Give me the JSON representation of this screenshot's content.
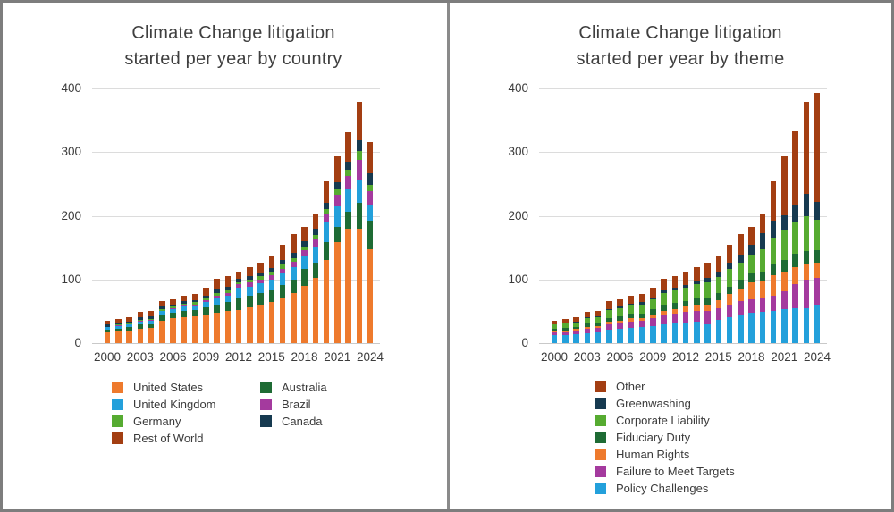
{
  "window": {
    "kind": "static-report-image",
    "panel_count": 2
  },
  "colors": {
    "united_states": "#EE7A2D",
    "united_kingdom": "#23A0DB",
    "germany": "#56AB31",
    "rest_of_world": "#A33E12",
    "australia": "#1E6B34",
    "brazil": "#A43A9E",
    "canada": "#163A50",
    "other": "#A33E12",
    "greenwashing": "#163A50",
    "corporate_liability": "#56AB31",
    "fiduciary_duty": "#1E6B34",
    "human_rights": "#EE7A2D",
    "failure_to_meet_targets": "#A43A9E",
    "policy_challenges": "#23A0DB",
    "title_text": "#3f3f3f",
    "tick_text": "#3b3b3b",
    "gridline": "#dcdcdc"
  },
  "chart_data": [
    {
      "type": "bar",
      "stacked": true,
      "title": "Climate Change litigation started per year by country",
      "title_line1": "Climate Change litigation",
      "title_line2": "started per year by country",
      "xlabel": "",
      "ylabel": "",
      "ylim": [
        0,
        400
      ],
      "yticks": [
        0,
        100,
        200,
        300,
        400
      ],
      "grid": true,
      "categories": [
        "2000",
        "2001",
        "2002",
        "2003",
        "2004",
        "2005",
        "2006",
        "2007",
        "2008",
        "2009",
        "2010",
        "2011",
        "2012",
        "2013",
        "2014",
        "2015",
        "2016",
        "2017",
        "2018",
        "2019",
        "2020",
        "2021",
        "2022",
        "2023",
        "2024"
      ],
      "x_tick_labels_shown": [
        "2000",
        "2003",
        "2006",
        "2009",
        "2012",
        "2015",
        "2018",
        "2021",
        "2024"
      ],
      "series": [
        {
          "name": "United States",
          "color": "#EE7A2D",
          "values": [
            17,
            19,
            20,
            23,
            24,
            35,
            39,
            41,
            42,
            45,
            48,
            51,
            52,
            56,
            60,
            64,
            70,
            78,
            90,
            102,
            131,
            158,
            179,
            179,
            148
          ]
        },
        {
          "name": "Australia",
          "color": "#1E6B34",
          "values": [
            4,
            4,
            5,
            6,
            6,
            9,
            9,
            10,
            10,
            11,
            13,
            13,
            19,
            18,
            18,
            19,
            21,
            22,
            26,
            25,
            28,
            25,
            28,
            42,
            45
          ]
        },
        {
          "name": "United Kingdom",
          "color": "#23A0DB",
          "values": [
            4,
            4,
            4,
            5,
            5,
            6,
            6,
            7,
            7,
            8,
            10,
            11,
            16,
            15,
            16,
            17,
            18,
            19,
            20,
            24,
            30,
            32,
            34,
            36,
            25
          ]
        },
        {
          "name": "Brazil",
          "color": "#A43A9E",
          "values": [
            0,
            1,
            1,
            1,
            1,
            1,
            1,
            2,
            2,
            3,
            4,
            4,
            5,
            6,
            6,
            7,
            8,
            9,
            10,
            12,
            14,
            18,
            22,
            31,
            21
          ]
        },
        {
          "name": "Germany",
          "color": "#56AB31",
          "values": [
            1,
            1,
            1,
            2,
            2,
            2,
            2,
            2,
            3,
            3,
            4,
            4,
            4,
            5,
            5,
            5,
            6,
            6,
            6,
            7,
            8,
            9,
            10,
            14,
            10
          ]
        },
        {
          "name": "Canada",
          "color": "#163A50",
          "values": [
            3,
            3,
            3,
            4,
            4,
            4,
            4,
            4,
            4,
            5,
            6,
            6,
            5,
            6,
            6,
            6,
            7,
            8,
            8,
            9,
            10,
            11,
            12,
            17,
            18
          ]
        },
        {
          "name": "Rest of World",
          "color": "#A33E12",
          "values": [
            6,
            6,
            7,
            8,
            8,
            9,
            8,
            9,
            9,
            12,
            16,
            17,
            12,
            13,
            15,
            18,
            24,
            30,
            23,
            25,
            33,
            41,
            46,
            60,
            49
          ]
        }
      ],
      "legend_position": "bottom",
      "legend_columns": 2,
      "legend": [
        {
          "name": "United States",
          "color": "#EE7A2D",
          "col": 0,
          "row": 0
        },
        {
          "name": "United Kingdom",
          "color": "#23A0DB",
          "col": 0,
          "row": 1
        },
        {
          "name": "Germany",
          "color": "#56AB31",
          "col": 0,
          "row": 2
        },
        {
          "name": "Rest of World",
          "color": "#A33E12",
          "col": 0,
          "row": 3
        },
        {
          "name": "Australia",
          "color": "#1E6B34",
          "col": 1,
          "row": 0
        },
        {
          "name": "Brazil",
          "color": "#A43A9E",
          "col": 1,
          "row": 1
        },
        {
          "name": "Canada",
          "color": "#163A50",
          "col": 1,
          "row": 2
        }
      ]
    },
    {
      "type": "bar",
      "stacked": true,
      "title": "Climate Change litigation started per year by theme",
      "title_line1": "Climate Change litigation",
      "title_line2": "started per year by theme",
      "xlabel": "",
      "ylabel": "",
      "ylim": [
        0,
        400
      ],
      "yticks": [
        0,
        100,
        200,
        300,
        400
      ],
      "grid": true,
      "categories": [
        "2000",
        "2001",
        "2002",
        "2003",
        "2004",
        "2005",
        "2006",
        "2007",
        "2008",
        "2009",
        "2010",
        "2011",
        "2012",
        "2013",
        "2014",
        "2015",
        "2016",
        "2017",
        "2018",
        "2019",
        "2020",
        "2021",
        "2022",
        "2023",
        "2024"
      ],
      "x_tick_labels_shown": [
        "2000",
        "2003",
        "2006",
        "2009",
        "2012",
        "2015",
        "2018",
        "2021",
        "2024"
      ],
      "series": [
        {
          "name": "Policy Challenges",
          "color": "#23A0DB",
          "values": [
            12,
            13,
            14,
            16,
            17,
            21,
            22,
            24,
            25,
            27,
            30,
            31,
            33,
            34,
            29,
            36,
            41,
            45,
            48,
            49,
            50,
            53,
            55,
            55,
            60
          ]
        },
        {
          "name": "Failure to Meet Targets",
          "color": "#A43A9E",
          "values": [
            5,
            5,
            6,
            7,
            7,
            9,
            9,
            10,
            10,
            12,
            14,
            15,
            16,
            17,
            21,
            19,
            20,
            21,
            21,
            22,
            25,
            28,
            37,
            44,
            42
          ]
        },
        {
          "name": "Human Rights",
          "color": "#EE7A2D",
          "values": [
            2,
            2,
            2,
            3,
            3,
            4,
            4,
            5,
            5,
            6,
            7,
            8,
            8,
            9,
            11,
            12,
            16,
            20,
            26,
            27,
            31,
            32,
            28,
            25,
            25
          ]
        },
        {
          "name": "Fiduciary Duty",
          "color": "#1E6B34",
          "values": [
            4,
            4,
            4,
            5,
            5,
            6,
            7,
            7,
            7,
            8,
            9,
            9,
            9,
            10,
            10,
            11,
            12,
            13,
            14,
            15,
            18,
            18,
            21,
            20,
            19
          ]
        },
        {
          "name": "Corporate Liability",
          "color": "#56AB31",
          "values": [
            6,
            7,
            7,
            9,
            9,
            12,
            13,
            14,
            14,
            16,
            19,
            20,
            21,
            22,
            24,
            26,
            27,
            28,
            30,
            35,
            42,
            48,
            49,
            55,
            48
          ]
        },
        {
          "name": "Greenwashing",
          "color": "#163A50",
          "values": [
            1,
            1,
            1,
            1,
            1,
            2,
            2,
            2,
            3,
            3,
            4,
            4,
            5,
            6,
            7,
            8,
            10,
            12,
            16,
            24,
            27,
            22,
            28,
            36,
            28
          ]
        },
        {
          "name": "Other",
          "color": "#A33E12",
          "values": [
            5,
            6,
            7,
            8,
            8,
            12,
            12,
            13,
            13,
            15,
            18,
            19,
            21,
            21,
            24,
            24,
            28,
            33,
            28,
            32,
            61,
            93,
            115,
            144,
            171
          ]
        }
      ],
      "legend_position": "bottom",
      "legend_columns": 1,
      "legend": [
        {
          "name": "Other",
          "color": "#A33E12",
          "col": 0,
          "row": 0
        },
        {
          "name": "Greenwashing",
          "color": "#163A50",
          "col": 0,
          "row": 1
        },
        {
          "name": "Corporate Liability",
          "color": "#56AB31",
          "col": 0,
          "row": 2
        },
        {
          "name": "Fiduciary Duty",
          "color": "#1E6B34",
          "col": 0,
          "row": 3
        },
        {
          "name": "Human Rights",
          "color": "#EE7A2D",
          "col": 0,
          "row": 4
        },
        {
          "name": "Failure to Meet Targets",
          "color": "#A43A9E",
          "col": 0,
          "row": 5
        },
        {
          "name": "Policy Challenges",
          "color": "#23A0DB",
          "col": 0,
          "row": 6
        }
      ]
    }
  ]
}
